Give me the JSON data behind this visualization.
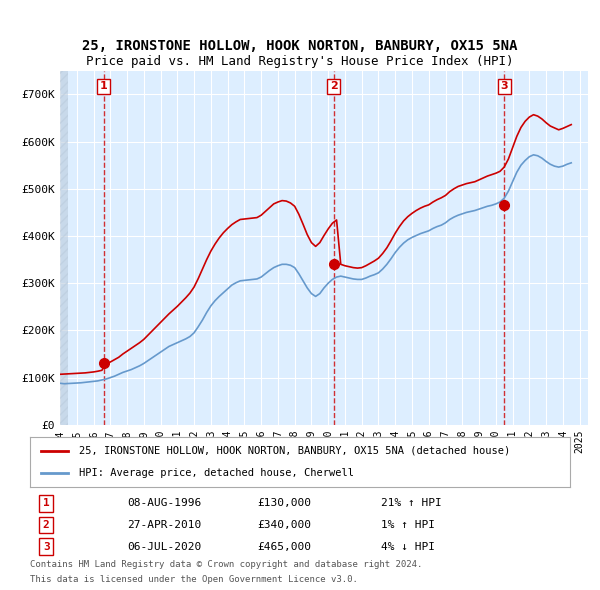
{
  "title_line1": "25, IRONSTONE HOLLOW, HOOK NORTON, BANBURY, OX15 5NA",
  "title_line2": "Price paid vs. HM Land Registry's House Price Index (HPI)",
  "ylabel": "",
  "xlim_start": 1994.0,
  "xlim_end": 2025.5,
  "ylim_bottom": 0,
  "ylim_top": 750000,
  "yticks": [
    0,
    100000,
    200000,
    300000,
    400000,
    500000,
    600000,
    700000
  ],
  "ytick_labels": [
    "£0",
    "£100K",
    "£200K",
    "£300K",
    "£400K",
    "£500K",
    "£600K",
    "£700K"
  ],
  "background_color": "#ddeeff",
  "plot_bg_color": "#ddeeff",
  "hatch_color": "#bbccdd",
  "grid_color": "#ffffff",
  "property_color": "#cc0000",
  "hpi_color": "#6699cc",
  "sale_marker_color": "#cc0000",
  "vline_color": "#cc0000",
  "legend_entries": [
    "25, IRONSTONE HOLLOW, HOOK NORTON, BANBURY, OX15 5NA (detached house)",
    "HPI: Average price, detached house, Cherwell"
  ],
  "sales": [
    {
      "num": 1,
      "year": 1996.6,
      "price": 130000,
      "date": "08-AUG-1996",
      "pct": "21%",
      "dir": "↑"
    },
    {
      "num": 2,
      "year": 2010.32,
      "price": 340000,
      "date": "27-APR-2010",
      "pct": "1%",
      "dir": "↑"
    },
    {
      "num": 3,
      "year": 2020.5,
      "price": 465000,
      "date": "06-JUL-2020",
      "pct": "4%",
      "dir": "↓"
    }
  ],
  "footer_line1": "Contains HM Land Registry data © Crown copyright and database right 2024.",
  "footer_line2": "This data is licensed under the Open Government Licence v3.0.",
  "hpi_data_x": [
    1994.0,
    1994.25,
    1994.5,
    1994.75,
    1995.0,
    1995.25,
    1995.5,
    1995.75,
    1996.0,
    1996.25,
    1996.5,
    1996.75,
    1997.0,
    1997.25,
    1997.5,
    1997.75,
    1998.0,
    1998.25,
    1998.5,
    1998.75,
    1999.0,
    1999.25,
    1999.5,
    1999.75,
    2000.0,
    2000.25,
    2000.5,
    2000.75,
    2001.0,
    2001.25,
    2001.5,
    2001.75,
    2002.0,
    2002.25,
    2002.5,
    2002.75,
    2003.0,
    2003.25,
    2003.5,
    2003.75,
    2004.0,
    2004.25,
    2004.5,
    2004.75,
    2005.0,
    2005.25,
    2005.5,
    2005.75,
    2006.0,
    2006.25,
    2006.5,
    2006.75,
    2007.0,
    2007.25,
    2007.5,
    2007.75,
    2008.0,
    2008.25,
    2008.5,
    2008.75,
    2009.0,
    2009.25,
    2009.5,
    2009.75,
    2010.0,
    2010.25,
    2010.5,
    2010.75,
    2011.0,
    2011.25,
    2011.5,
    2011.75,
    2012.0,
    2012.25,
    2012.5,
    2012.75,
    2013.0,
    2013.25,
    2013.5,
    2013.75,
    2014.0,
    2014.25,
    2014.5,
    2014.75,
    2015.0,
    2015.25,
    2015.5,
    2015.75,
    2016.0,
    2016.25,
    2016.5,
    2016.75,
    2017.0,
    2017.25,
    2017.5,
    2017.75,
    2018.0,
    2018.25,
    2018.5,
    2018.75,
    2019.0,
    2019.25,
    2019.5,
    2019.75,
    2020.0,
    2020.25,
    2020.5,
    2020.75,
    2021.0,
    2021.25,
    2021.5,
    2021.75,
    2022.0,
    2022.25,
    2022.5,
    2022.75,
    2023.0,
    2023.25,
    2023.5,
    2023.75,
    2024.0,
    2024.25,
    2024.5
  ],
  "hpi_data_y": [
    88000,
    87000,
    87500,
    88000,
    88500,
    89000,
    90000,
    91000,
    92000,
    93000,
    95000,
    97000,
    100000,
    103000,
    107000,
    111000,
    114000,
    117000,
    121000,
    125000,
    130000,
    136000,
    142000,
    148000,
    154000,
    160000,
    166000,
    170000,
    174000,
    178000,
    182000,
    187000,
    195000,
    208000,
    222000,
    238000,
    252000,
    263000,
    272000,
    280000,
    288000,
    296000,
    301000,
    305000,
    306000,
    307000,
    308000,
    309000,
    313000,
    320000,
    327000,
    333000,
    337000,
    340000,
    340000,
    338000,
    333000,
    320000,
    305000,
    290000,
    278000,
    272000,
    278000,
    290000,
    300000,
    308000,
    313000,
    315000,
    313000,
    311000,
    309000,
    308000,
    308000,
    311000,
    315000,
    318000,
    322000,
    330000,
    340000,
    352000,
    365000,
    376000,
    385000,
    392000,
    397000,
    401000,
    405000,
    408000,
    411000,
    416000,
    420000,
    423000,
    428000,
    435000,
    440000,
    444000,
    447000,
    450000,
    452000,
    454000,
    457000,
    460000,
    463000,
    465000,
    468000,
    472000,
    480000,
    495000,
    515000,
    535000,
    550000,
    560000,
    568000,
    572000,
    570000,
    565000,
    558000,
    552000,
    548000,
    546000,
    548000,
    552000,
    555000
  ],
  "property_data_x": [
    1994.0,
    1994.25,
    1994.5,
    1994.75,
    1995.0,
    1995.25,
    1995.5,
    1995.75,
    1996.0,
    1996.25,
    1996.5,
    1996.75,
    1997.0,
    1997.25,
    1997.5,
    1997.75,
    1998.0,
    1998.25,
    1998.5,
    1998.75,
    1999.0,
    1999.25,
    1999.5,
    1999.75,
    2000.0,
    2000.25,
    2000.5,
    2000.75,
    2001.0,
    2001.25,
    2001.5,
    2001.75,
    2002.0,
    2002.25,
    2002.5,
    2002.75,
    2003.0,
    2003.25,
    2003.5,
    2003.75,
    2004.0,
    2004.25,
    2004.5,
    2004.75,
    2005.0,
    2005.25,
    2005.5,
    2005.75,
    2006.0,
    2006.25,
    2006.5,
    2006.75,
    2007.0,
    2007.25,
    2007.5,
    2007.75,
    2008.0,
    2008.25,
    2008.5,
    2008.75,
    2009.0,
    2009.25,
    2009.5,
    2009.75,
    2010.0,
    2010.25,
    2010.5,
    2010.75,
    2011.0,
    2011.25,
    2011.5,
    2011.75,
    2012.0,
    2012.25,
    2012.5,
    2012.75,
    2013.0,
    2013.25,
    2013.5,
    2013.75,
    2014.0,
    2014.25,
    2014.5,
    2014.75,
    2015.0,
    2015.25,
    2015.5,
    2015.75,
    2016.0,
    2016.25,
    2016.5,
    2016.75,
    2017.0,
    2017.25,
    2017.5,
    2017.75,
    2018.0,
    2018.25,
    2018.5,
    2018.75,
    2019.0,
    2019.25,
    2019.5,
    2019.75,
    2020.0,
    2020.25,
    2020.5,
    2020.75,
    2021.0,
    2021.25,
    2021.5,
    2021.75,
    2022.0,
    2022.25,
    2022.5,
    2022.75,
    2023.0,
    2023.25,
    2023.5,
    2023.75,
    2024.0,
    2024.25,
    2024.5
  ],
  "property_data_y": [
    107000,
    107500,
    108000,
    108500,
    109000,
    109500,
    110000,
    111000,
    112000,
    113500,
    115500,
    130000,
    133000,
    138000,
    143000,
    150000,
    156000,
    162000,
    168000,
    174000,
    181000,
    190000,
    199000,
    208000,
    217000,
    226000,
    235000,
    243000,
    251000,
    260000,
    269000,
    279000,
    292000,
    310000,
    330000,
    350000,
    368000,
    383000,
    396000,
    407000,
    416000,
    424000,
    430000,
    435000,
    436000,
    437000,
    438000,
    439000,
    444000,
    452000,
    460000,
    468000,
    472000,
    475000,
    474000,
    470000,
    463000,
    446000,
    425000,
    403000,
    386000,
    378000,
    386000,
    401000,
    415000,
    427000,
    434000,
    340000,
    337000,
    335000,
    333000,
    332000,
    333000,
    337000,
    342000,
    347000,
    353000,
    363000,
    375000,
    390000,
    406000,
    420000,
    432000,
    441000,
    448000,
    454000,
    459000,
    463000,
    466000,
    472000,
    477000,
    481000,
    486000,
    494000,
    500000,
    505000,
    508000,
    511000,
    513000,
    515000,
    519000,
    523000,
    527000,
    530000,
    533000,
    537000,
    546000,
    563000,
    587000,
    611000,
    630000,
    643000,
    652000,
    657000,
    654000,
    648000,
    640000,
    633000,
    629000,
    625000,
    628000,
    632000,
    636000
  ]
}
